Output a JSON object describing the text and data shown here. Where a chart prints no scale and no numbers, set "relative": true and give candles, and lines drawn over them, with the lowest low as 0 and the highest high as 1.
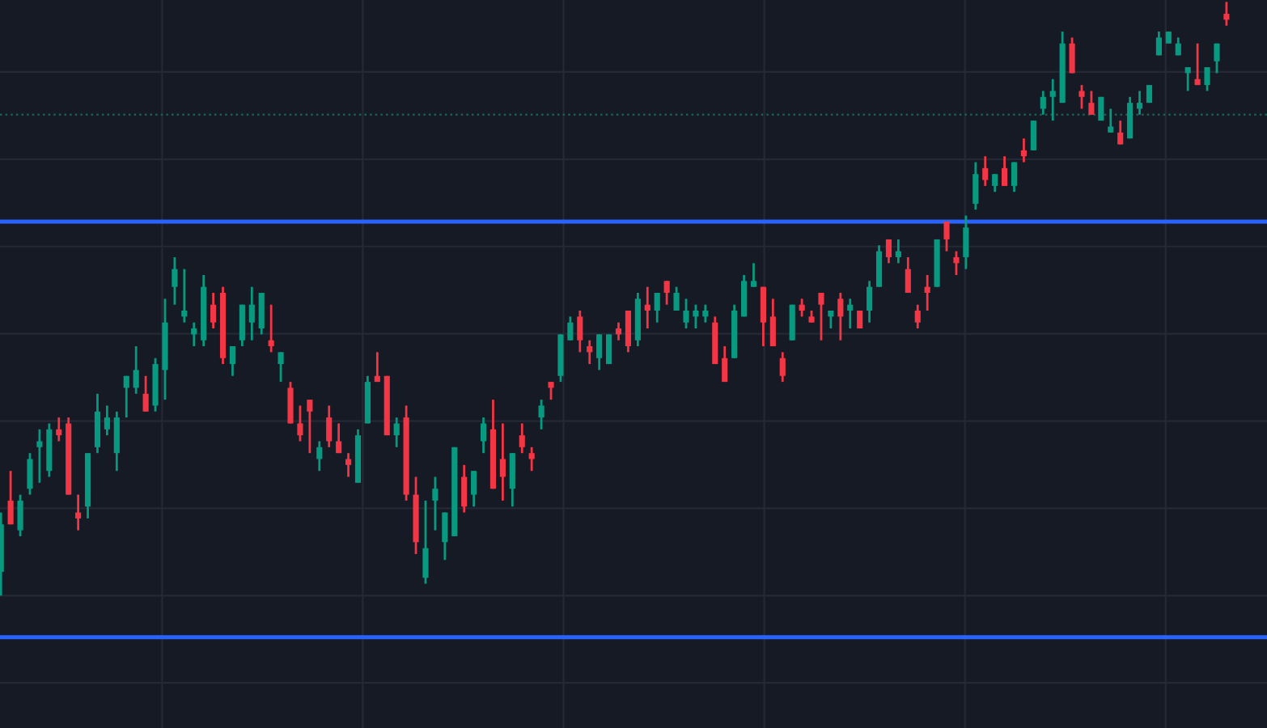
{
  "chart_data": {
    "type": "candlestick",
    "relative": true,
    "categories": [
      null,
      null,
      null,
      null,
      null,
      null,
      null,
      null,
      null,
      null,
      null,
      null,
      null,
      null,
      null,
      null,
      null,
      null,
      null,
      null,
      null,
      null,
      null,
      null,
      null,
      null,
      null,
      null,
      null,
      null,
      null,
      null,
      null,
      null,
      null,
      null,
      null,
      null,
      null,
      null,
      null,
      null,
      null,
      null,
      null,
      null,
      null,
      null,
      null,
      null,
      null,
      null,
      null,
      null,
      null,
      null,
      null,
      null,
      null,
      null,
      null,
      null,
      null,
      null,
      null,
      null,
      null,
      null,
      null,
      null,
      null,
      null,
      null,
      null,
      null,
      null,
      null,
      null,
      null,
      null,
      null,
      null,
      null,
      null,
      null,
      null,
      null,
      null,
      null,
      null,
      null,
      null,
      null,
      null,
      null,
      null,
      null,
      null,
      null,
      null,
      null,
      null,
      null,
      null,
      null,
      null,
      null,
      null,
      null,
      null,
      null,
      null,
      null,
      null,
      null,
      null,
      null,
      null,
      null,
      null,
      null,
      null,
      null,
      null,
      null,
      null,
      null,
      null
    ],
    "ohlc": [
      [
        0.04,
        0.14,
        0,
        0.12
      ],
      [
        0.16,
        0.21,
        0.12,
        0.12
      ],
      [
        0.11,
        0.17,
        0.1,
        0.16
      ],
      [
        0.18,
        0.24,
        0.17,
        0.23
      ],
      [
        0.25,
        0.28,
        0.19,
        0.26
      ],
      [
        0.21,
        0.29,
        0.2,
        0.28
      ],
      [
        0.28,
        0.3,
        0.26,
        0.27
      ],
      [
        0.29,
        0.3,
        0.17,
        0.17
      ],
      [
        0.14,
        0.17,
        0.11,
        0.13
      ],
      [
        0.15,
        0.24,
        0.13,
        0.24
      ],
      [
        0.25,
        0.34,
        0.24,
        0.31
      ],
      [
        0.28,
        0.32,
        0.27,
        0.3
      ],
      [
        0.24,
        0.31,
        0.21,
        0.3
      ],
      [
        0.35,
        0.37,
        0.3,
        0.37
      ],
      [
        0.35,
        0.42,
        0.34,
        0.38
      ],
      [
        0.34,
        0.37,
        0.31,
        0.31
      ],
      [
        0.32,
        0.4,
        0.31,
        0.39
      ],
      [
        0.38,
        0.5,
        0.33,
        0.46
      ],
      [
        0.52,
        0.57,
        0.49,
        0.55
      ],
      [
        0.47,
        0.55,
        0.46,
        0.48
      ],
      [
        0.44,
        0.46,
        0.42,
        0.45
      ],
      [
        0.43,
        0.54,
        0.42,
        0.52
      ],
      [
        0.49,
        0.51,
        0.45,
        0.46
      ],
      [
        0.51,
        0.52,
        0.39,
        0.4
      ],
      [
        0.39,
        0.42,
        0.37,
        0.42
      ],
      [
        0.43,
        0.49,
        0.42,
        0.49
      ],
      [
        0.46,
        0.52,
        0.43,
        0.49
      ],
      [
        0.45,
        0.51,
        0.44,
        0.51
      ],
      [
        0.43,
        0.49,
        0.41,
        0.42
      ],
      [
        0.39,
        0.41,
        0.36,
        0.41
      ],
      [
        0.35,
        0.36,
        0.29,
        0.29
      ],
      [
        0.29,
        0.32,
        0.26,
        0.27
      ],
      [
        0.33,
        0.33,
        0.24,
        0.31
      ],
      [
        0.23,
        0.26,
        0.21,
        0.25
      ],
      [
        0.3,
        0.32,
        0.25,
        0.26
      ],
      [
        0.26,
        0.29,
        0.24,
        0.24
      ],
      [
        0.23,
        0.24,
        0.2,
        0.22
      ],
      [
        0.19,
        0.28,
        0.19,
        0.27
      ],
      [
        0.29,
        0.37,
        0.29,
        0.36
      ],
      [
        0.37,
        0.41,
        0.36,
        0.36
      ],
      [
        0.37,
        0.37,
        0.27,
        0.27
      ],
      [
        0.27,
        0.3,
        0.25,
        0.29
      ],
      [
        0.3,
        0.32,
        0.16,
        0.17
      ],
      [
        0.17,
        0.2,
        0.07,
        0.09
      ],
      [
        0.03,
        0.16,
        0.02,
        0.08
      ],
      [
        0.16,
        0.2,
        0.11,
        0.18
      ],
      [
        0.09,
        0.14,
        0.06,
        0.14
      ],
      [
        0.1,
        0.25,
        0.1,
        0.25
      ],
      [
        0.2,
        0.22,
        0.14,
        0.15
      ],
      [
        0.17,
        0.21,
        0.15,
        0.21
      ],
      [
        0.26,
        0.3,
        0.24,
        0.29
      ],
      [
        0.28,
        0.33,
        0.18,
        0.18
      ],
      [
        0.23,
        0.29,
        0.16,
        0.2
      ],
      [
        0.18,
        0.24,
        0.15,
        0.24
      ],
      [
        0.27,
        0.29,
        0.24,
        0.25
      ],
      [
        0.24,
        0.25,
        0.21,
        0.23
      ],
      [
        0.3,
        0.33,
        0.28,
        0.32
      ],
      [
        0.36,
        0.36,
        0.33,
        0.35
      ],
      [
        0.37,
        0.44,
        0.36,
        0.44
      ],
      [
        0.43,
        0.47,
        0.43,
        0.46
      ],
      [
        0.47,
        0.48,
        0.41,
        0.43
      ],
      [
        0.42,
        0.43,
        0.39,
        0.41
      ],
      [
        0.4,
        0.44,
        0.38,
        0.44
      ],
      [
        0.39,
        0.44,
        0.39,
        0.44
      ],
      [
        0.45,
        0.46,
        0.43,
        0.44
      ],
      [
        0.48,
        0.48,
        0.41,
        0.42
      ],
      [
        0.43,
        0.51,
        0.42,
        0.5
      ],
      [
        0.49,
        0.52,
        0.45,
        0.48
      ],
      [
        0.48,
        0.51,
        0.46,
        0.51
      ],
      [
        0.53,
        0.53,
        0.49,
        0.51
      ],
      [
        0.48,
        0.52,
        0.48,
        0.51
      ],
      [
        0.46,
        0.5,
        0.45,
        0.48
      ],
      [
        0.47,
        0.49,
        0.45,
        0.48
      ],
      [
        0.47,
        0.49,
        0.46,
        0.48
      ],
      [
        0.46,
        0.47,
        0.39,
        0.39
      ],
      [
        0.4,
        0.42,
        0.36,
        0.36
      ],
      [
        0.4,
        0.49,
        0.4,
        0.48
      ],
      [
        0.47,
        0.54,
        0.47,
        0.53
      ],
      [
        0.52,
        0.56,
        0.52,
        0.53
      ],
      [
        0.52,
        0.52,
        0.42,
        0.46
      ],
      [
        0.47,
        0.5,
        0.42,
        0.42
      ],
      [
        0.4,
        0.41,
        0.36,
        0.37
      ],
      [
        0.43,
        0.49,
        0.43,
        0.49
      ],
      [
        0.49,
        0.5,
        0.47,
        0.48
      ],
      [
        0.47,
        0.48,
        0.46,
        0.46
      ],
      [
        0.51,
        0.51,
        0.43,
        0.49
      ],
      [
        0.47,
        0.48,
        0.45,
        0.48
      ],
      [
        0.5,
        0.51,
        0.43,
        0.47
      ],
      [
        0.48,
        0.5,
        0.45,
        0.49
      ],
      [
        0.48,
        0.48,
        0.45,
        0.45
      ],
      [
        0.48,
        0.53,
        0.46,
        0.52
      ],
      [
        0.52,
        0.59,
        0.52,
        0.58
      ],
      [
        0.6,
        0.6,
        0.56,
        0.57
      ],
      [
        0.57,
        0.6,
        0.56,
        0.58
      ],
      [
        0.55,
        0.57,
        0.51,
        0.51
      ],
      [
        0.48,
        0.49,
        0.45,
        0.46
      ],
      [
        0.52,
        0.54,
        0.48,
        0.51
      ],
      [
        0.52,
        0.6,
        0.52,
        0.6
      ],
      [
        0.63,
        0.63,
        0.58,
        0.6
      ],
      [
        0.57,
        0.58,
        0.54,
        0.56
      ],
      [
        0.57,
        0.64,
        0.55,
        0.62
      ],
      [
        0.66,
        0.73,
        0.65,
        0.71
      ],
      [
        0.72,
        0.74,
        0.69,
        0.7
      ],
      [
        0.69,
        0.71,
        0.68,
        0.71
      ],
      [
        0.72,
        0.74,
        0.69,
        0.69
      ],
      [
        0.69,
        0.73,
        0.68,
        0.73
      ],
      [
        0.75,
        0.77,
        0.73,
        0.74
      ],
      [
        0.75,
        0.8,
        0.75,
        0.8
      ],
      [
        0.82,
        0.85,
        0.81,
        0.84
      ],
      [
        0.84,
        0.87,
        0.8,
        0.85
      ],
      [
        0.83,
        0.95,
        0.83,
        0.93
      ],
      [
        0.93,
        0.94,
        0.88,
        0.88
      ],
      [
        0.85,
        0.86,
        0.82,
        0.84
      ],
      [
        0.83,
        0.85,
        0.81,
        0.81
      ],
      [
        0.8,
        0.84,
        0.8,
        0.84
      ],
      [
        0.78,
        0.82,
        0.78,
        0.79
      ],
      [
        0.78,
        0.8,
        0.76,
        0.76
      ],
      [
        0.77,
        0.84,
        0.77,
        0.83
      ],
      [
        0.82,
        0.85,
        0.81,
        0.83
      ],
      [
        0.83,
        0.86,
        0.83,
        0.86
      ],
      [
        0.91,
        0.95,
        0.91,
        0.94
      ],
      [
        0.93,
        0.95,
        0.93,
        0.95
      ],
      [
        0.91,
        0.94,
        0.91,
        0.93
      ],
      [
        0.88,
        0.89,
        0.85,
        0.89
      ],
      [
        0.87,
        0.93,
        0.86,
        0.86
      ],
      [
        0.86,
        0.89,
        0.85,
        0.89
      ],
      [
        0.9,
        0.93,
        0.88,
        0.93
      ],
      [
        0.98,
        1,
        0.96,
        0.97
      ]
    ],
    "ref_lines": [
      {
        "axis": "y",
        "value": 0.63,
        "color": "#2962ff",
        "line_style": "solid"
      },
      {
        "axis": "y",
        "value": -0.07,
        "color": "#2962ff",
        "line_style": "solid"
      },
      {
        "axis": "y",
        "value": 0.81,
        "color": "#1b5e52",
        "line_style": "dotted"
      }
    ],
    "grid": true
  }
}
